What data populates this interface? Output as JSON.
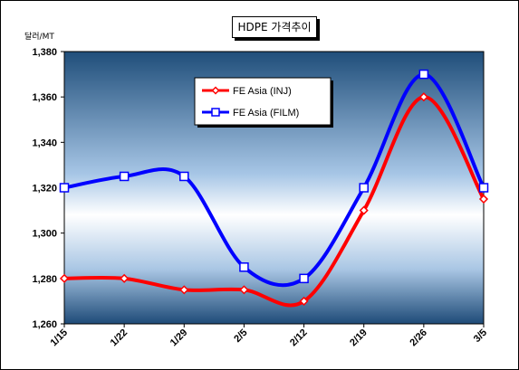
{
  "chart_data": {
    "type": "line",
    "title": "HDPE 가격추이",
    "ylabel": "달러/MT",
    "categories": [
      "1/15",
      "1/22",
      "1/29",
      "2/5",
      "2/12",
      "2/19",
      "2/26",
      "3/5"
    ],
    "yticks": [
      "1,260",
      "1,280",
      "1,300",
      "1,320",
      "1,340",
      "1,360",
      "1,380"
    ],
    "ylim": [
      1260,
      1380
    ],
    "grid": false,
    "legend_position": "top-left",
    "series": [
      {
        "name": "FE Asia (INJ)",
        "color": "#ff0000",
        "marker": "diamond",
        "values": [
          1280,
          1280,
          1275,
          1275,
          1270,
          1310,
          1360,
          1315
        ]
      },
      {
        "name": "FE Asia (FILM)",
        "color": "#0000ff",
        "marker": "square",
        "values": [
          1320,
          1325,
          1325,
          1285,
          1280,
          1320,
          1370,
          1320
        ]
      }
    ]
  }
}
